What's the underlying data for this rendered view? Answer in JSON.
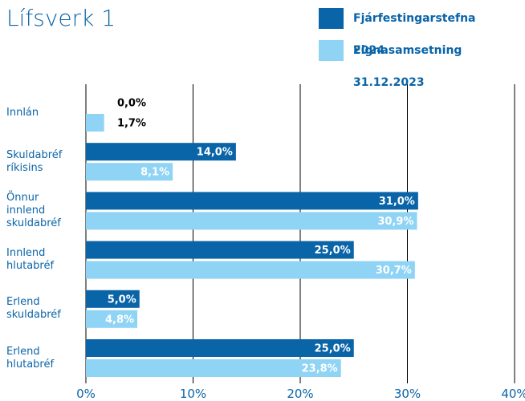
{
  "chart_data": {
    "type": "bar",
    "orientation": "horizontal",
    "title": "Lífsverk 1",
    "categories": [
      "Innlán",
      "Skuldabréf ríkisins",
      "Önnur innlend skuldabréf",
      "Innlend hlutabréf",
      "Erlend skuldabréf",
      "Erlend hlutabréf"
    ],
    "series": [
      {
        "name": "Fjárfestingarstefna 2024",
        "color": "#0a64a8",
        "values": [
          0,
          14,
          31,
          25,
          5,
          25
        ],
        "value_labels": [
          "0,0%",
          "14,0%",
          "31,0%",
          "25,0%",
          "5,0%",
          "25,0%"
        ]
      },
      {
        "name": "Eignasamsetning 31.12.2023",
        "color": "#8fd3f5",
        "values": [
          1.7,
          8.1,
          30.9,
          30.7,
          4.8,
          23.8
        ],
        "value_labels": [
          "1,7%",
          "8,1%",
          "30,9%",
          "30,7%",
          "4,8%",
          "23,8%"
        ]
      }
    ],
    "xlim": [
      0,
      40
    ],
    "xticks": [
      {
        "value": 0,
        "label": "0%"
      },
      {
        "value": 10,
        "label": "10%"
      },
      {
        "value": 20,
        "label": "20%"
      },
      {
        "value": 30,
        "label": "30%"
      },
      {
        "value": 40,
        "label": "40%"
      }
    ],
    "grid": true,
    "legend": "top-right"
  }
}
